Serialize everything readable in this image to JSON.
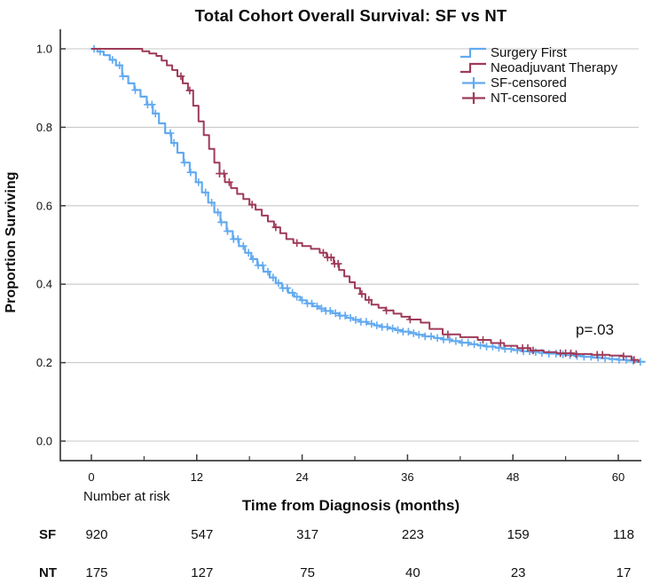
{
  "chart_data": {
    "type": "line",
    "subtype": "kaplan-meier-step-survival",
    "title": "Total Cohort Overall Survival: SF vs NT",
    "xlabel": "Time from Diagnosis (months)",
    "ylabel": "Proportion Surviving",
    "p_value_text": "p=.03",
    "xlim": [
      -3.5,
      62.5
    ],
    "ylim": [
      -0.05,
      1.05
    ],
    "grid": "horizontal-only",
    "legend_position": "inside-top-right",
    "colors": {
      "grid": "#c9c9c9",
      "axis": "#3c3c3c",
      "sf": "#62aaf0",
      "nt": "#9e3a58"
    },
    "x_ticks": [
      [
        0,
        "0"
      ],
      [
        12,
        "12"
      ],
      [
        24,
        "24"
      ],
      [
        36,
        "36"
      ],
      [
        48,
        "48"
      ],
      [
        60,
        "60"
      ]
    ],
    "x_minor_ticks": [
      6,
      18,
      30,
      42,
      54
    ],
    "y_ticks": [
      [
        0.0,
        "0.0"
      ],
      [
        0.2,
        "0.2"
      ],
      [
        0.4,
        "0.4"
      ],
      [
        0.6,
        "0.6"
      ],
      [
        0.8,
        "0.8"
      ],
      [
        1.0,
        "1.0"
      ]
    ],
    "legend": [
      {
        "label": "Surgery First",
        "marker": "step",
        "color": "#62aaf0"
      },
      {
        "label": "Neoadjuvant Therapy",
        "marker": "step",
        "color": "#9e3a58"
      },
      {
        "label": "SF-censored",
        "marker": "plus",
        "color": "#62aaf0"
      },
      {
        "label": "NT-censored",
        "marker": "plus",
        "color": "#9e3a58"
      }
    ],
    "series": [
      {
        "id": "sf",
        "name": "Surgery First",
        "color": "#62aaf0",
        "stroke_width": 2.2,
        "points": [
          [
            0,
            1.0
          ],
          [
            0.7,
            0.993
          ],
          [
            1.4,
            0.984
          ],
          [
            2.1,
            0.972
          ],
          [
            2.8,
            0.958
          ],
          [
            3.5,
            0.93
          ],
          [
            4.2,
            0.912
          ],
          [
            4.9,
            0.895
          ],
          [
            5.6,
            0.878
          ],
          [
            6.3,
            0.858
          ],
          [
            7.0,
            0.835
          ],
          [
            7.7,
            0.81
          ],
          [
            8.4,
            0.785
          ],
          [
            9.1,
            0.76
          ],
          [
            9.8,
            0.735
          ],
          [
            10.5,
            0.71
          ],
          [
            11.2,
            0.685
          ],
          [
            11.9,
            0.66
          ],
          [
            12.6,
            0.634
          ],
          [
            13.3,
            0.608
          ],
          [
            14.0,
            0.583
          ],
          [
            14.7,
            0.558
          ],
          [
            15.4,
            0.535
          ],
          [
            16.1,
            0.515
          ],
          [
            16.8,
            0.497
          ],
          [
            17.5,
            0.48
          ],
          [
            18.2,
            0.464
          ],
          [
            18.9,
            0.448
          ],
          [
            19.6,
            0.432
          ],
          [
            20.3,
            0.417
          ],
          [
            21.0,
            0.403
          ],
          [
            21.7,
            0.39
          ],
          [
            22.4,
            0.378
          ],
          [
            23.1,
            0.368
          ],
          [
            23.8,
            0.359
          ],
          [
            24.5,
            0.351
          ],
          [
            25.2,
            0.344
          ],
          [
            25.9,
            0.338
          ],
          [
            26.6,
            0.332
          ],
          [
            27.4,
            0.326
          ],
          [
            28.2,
            0.32
          ],
          [
            29.0,
            0.314
          ],
          [
            29.8,
            0.309
          ],
          [
            30.6,
            0.304
          ],
          [
            31.4,
            0.299
          ],
          [
            32.2,
            0.295
          ],
          [
            33.0,
            0.291
          ],
          [
            33.8,
            0.287
          ],
          [
            34.6,
            0.283
          ],
          [
            35.4,
            0.279
          ],
          [
            36.2,
            0.275
          ],
          [
            37.0,
            0.271
          ],
          [
            38.0,
            0.267
          ],
          [
            39.0,
            0.263
          ],
          [
            40.0,
            0.259
          ],
          [
            41.0,
            0.255
          ],
          [
            42.0,
            0.251
          ],
          [
            43.0,
            0.247
          ],
          [
            44.0,
            0.244
          ],
          [
            45.0,
            0.241
          ],
          [
            46.0,
            0.238
          ],
          [
            47.0,
            0.235
          ],
          [
            48.0,
            0.232
          ],
          [
            49.0,
            0.229
          ],
          [
            50.0,
            0.227
          ],
          [
            51.0,
            0.225
          ],
          [
            52.0,
            0.223
          ],
          [
            53.0,
            0.221
          ],
          [
            54.0,
            0.219
          ],
          [
            55.0,
            0.217
          ],
          [
            56.0,
            0.215
          ],
          [
            57.0,
            0.213
          ],
          [
            58.0,
            0.211
          ],
          [
            59.0,
            0.209
          ],
          [
            60.0,
            0.207
          ],
          [
            61.0,
            0.205
          ],
          [
            62.0,
            0.202
          ],
          [
            63.0,
            0.2
          ]
        ],
        "censor_times": [
          0.3,
          1.0,
          2.4,
          3.2,
          3.6,
          5.0,
          6.4,
          6.9,
          7.3,
          9.0,
          9.4,
          10.6,
          11.3,
          12.2,
          13.0,
          13.7,
          14.4,
          14.8,
          15.5,
          16.2,
          16.7,
          17.3,
          17.9,
          18.4,
          19.0,
          19.5,
          20.1,
          20.7,
          21.3,
          21.8,
          22.3,
          22.9,
          23.4,
          24.0,
          24.6,
          25.1,
          25.7,
          26.2,
          26.7,
          27.2,
          27.8,
          28.3,
          28.9,
          29.5,
          30.1,
          30.7,
          31.3,
          31.9,
          32.5,
          33.1,
          33.7,
          34.3,
          34.9,
          35.5,
          36.1,
          36.7,
          37.3,
          38.0,
          38.7,
          39.4,
          40.1,
          40.8,
          41.5,
          42.2,
          42.9,
          43.6,
          44.3,
          45.0,
          45.7,
          46.4,
          47.1,
          47.8,
          48.5,
          49.2,
          49.9,
          50.6,
          51.3,
          52.1,
          52.9,
          53.7,
          54.5,
          55.3,
          56.1,
          56.9,
          57.7,
          58.5,
          59.3,
          60.1,
          60.9,
          61.7,
          62.5
        ]
      },
      {
        "id": "nt",
        "name": "Neoadjuvant Therapy",
        "color": "#9e3a58",
        "stroke_width": 2.0,
        "points": [
          [
            0,
            1.0
          ],
          [
            5.3,
            1.0
          ],
          [
            5.8,
            0.994
          ],
          [
            6.6,
            0.988
          ],
          [
            7.4,
            0.982
          ],
          [
            8.0,
            0.97
          ],
          [
            8.6,
            0.958
          ],
          [
            9.2,
            0.946
          ],
          [
            9.8,
            0.93
          ],
          [
            10.4,
            0.912
          ],
          [
            11.0,
            0.894
          ],
          [
            11.6,
            0.855
          ],
          [
            12.2,
            0.815
          ],
          [
            12.8,
            0.78
          ],
          [
            13.4,
            0.745
          ],
          [
            14.0,
            0.71
          ],
          [
            14.6,
            0.682
          ],
          [
            15.2,
            0.66
          ],
          [
            15.9,
            0.645
          ],
          [
            16.6,
            0.63
          ],
          [
            17.3,
            0.617
          ],
          [
            18.0,
            0.603
          ],
          [
            18.7,
            0.59
          ],
          [
            19.4,
            0.575
          ],
          [
            20.1,
            0.56
          ],
          [
            20.8,
            0.545
          ],
          [
            21.5,
            0.53
          ],
          [
            22.2,
            0.515
          ],
          [
            23.0,
            0.505
          ],
          [
            24.0,
            0.497
          ],
          [
            25.0,
            0.49
          ],
          [
            26.0,
            0.48
          ],
          [
            26.8,
            0.468
          ],
          [
            27.6,
            0.452
          ],
          [
            28.2,
            0.436
          ],
          [
            28.8,
            0.42
          ],
          [
            29.4,
            0.405
          ],
          [
            30.0,
            0.39
          ],
          [
            30.6,
            0.375
          ],
          [
            31.2,
            0.36
          ],
          [
            31.9,
            0.348
          ],
          [
            32.7,
            0.34
          ],
          [
            33.5,
            0.333
          ],
          [
            34.4,
            0.325
          ],
          [
            35.3,
            0.317
          ],
          [
            36.2,
            0.31
          ],
          [
            37.5,
            0.302
          ],
          [
            38.5,
            0.286
          ],
          [
            40.0,
            0.272
          ],
          [
            42.0,
            0.265
          ],
          [
            44.0,
            0.258
          ],
          [
            45.5,
            0.25
          ],
          [
            47.0,
            0.243
          ],
          [
            48.5,
            0.237
          ],
          [
            50.0,
            0.231
          ],
          [
            51.5,
            0.227
          ],
          [
            53.0,
            0.224
          ],
          [
            55.0,
            0.222
          ],
          [
            57.0,
            0.22
          ],
          [
            59.0,
            0.218
          ],
          [
            60.5,
            0.216
          ],
          [
            61.5,
            0.207
          ],
          [
            62.3,
            0.2
          ]
        ],
        "censor_times": [
          10.2,
          11.2,
          14.6,
          15.1,
          15.7,
          18.3,
          21.0,
          23.4,
          26.4,
          26.9,
          27.3,
          27.7,
          28.1,
          30.8,
          31.6,
          33.6,
          36.3,
          40.6,
          44.6,
          46.6,
          49.1,
          49.7,
          50.3,
          53.4,
          54.0,
          54.6,
          55.2,
          57.6,
          58.2,
          60.6,
          61.8
        ]
      }
    ],
    "risk_table": {
      "caption": "Number at risk",
      "rows": [
        {
          "label": "SF",
          "values": [
            "920",
            "547",
            "317",
            "223",
            "159",
            "118"
          ]
        },
        {
          "label": "NT",
          "values": [
            "175",
            "127",
            "75",
            "40",
            "23",
            "17"
          ]
        }
      ]
    }
  }
}
